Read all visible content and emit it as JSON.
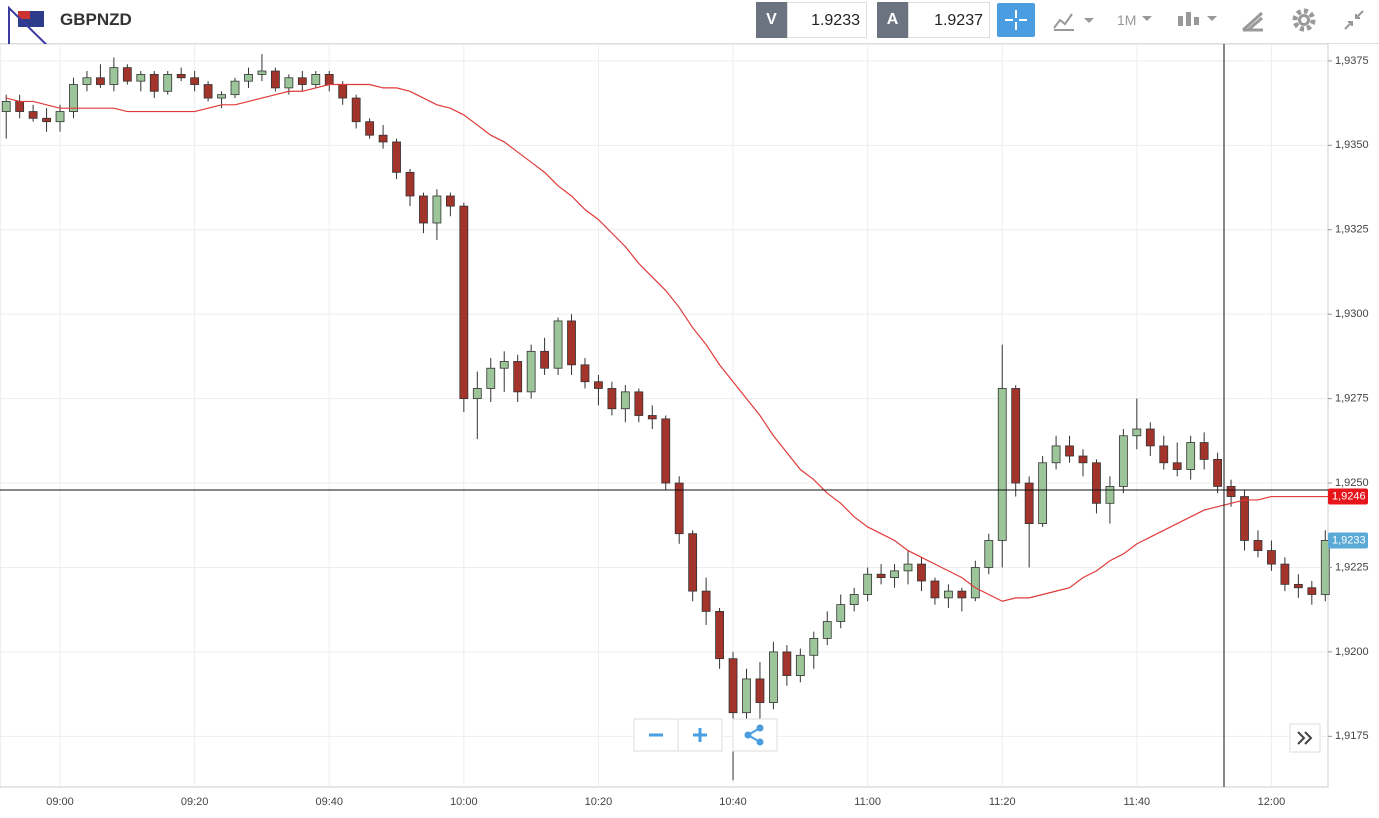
{
  "header": {
    "symbol": "GBPNZD",
    "bid_label": "V",
    "bid": "1.9233",
    "ask_label": "A",
    "ask": "1.9237",
    "timeframe": "1M"
  },
  "chart_data": {
    "type": "candlestick",
    "categories": [
      null,
      null,
      null,
      null,
      "09:00",
      null,
      null,
      null,
      null,
      null,
      null,
      null,
      null,
      null,
      "09:20",
      null,
      null,
      null,
      null,
      null,
      null,
      null,
      null,
      null,
      "09:40",
      null,
      null,
      null,
      null,
      null,
      null,
      null,
      null,
      null,
      "10:00",
      null,
      null,
      null,
      null,
      null,
      null,
      null,
      null,
      null,
      "10:20",
      null,
      null,
      null,
      null,
      null,
      null,
      null,
      null,
      null,
      "10:40",
      null,
      null,
      null,
      null,
      null,
      null,
      null,
      null,
      null,
      "11:00",
      null,
      null,
      null,
      null,
      null,
      null,
      null,
      null,
      null,
      "11:20",
      null,
      null,
      null,
      null,
      null,
      null,
      null,
      null,
      null,
      "11:40",
      null,
      null,
      null,
      null,
      null,
      null,
      null,
      null,
      null,
      "12:00",
      null,
      null,
      null,
      null
    ],
    "open": [
      1.936,
      1.9363,
      1.936,
      1.9358,
      1.9357,
      1.936,
      1.9368,
      1.937,
      1.9368,
      1.9373,
      1.9369,
      1.9371,
      1.9366,
      1.9371,
      1.937,
      1.9368,
      1.9364,
      1.9365,
      1.9369,
      1.9371,
      1.9372,
      1.9367,
      1.937,
      1.9368,
      1.9371,
      1.9368,
      1.9364,
      1.9357,
      1.9353,
      1.9351,
      1.9342,
      1.9335,
      1.9327,
      1.9335,
      1.9332,
      1.9275,
      1.9278,
      1.9284,
      1.9286,
      1.9277,
      1.9289,
      1.9284,
      1.9298,
      1.9285,
      1.928,
      1.9278,
      1.9272,
      1.9277,
      1.927,
      1.9269,
      1.925,
      1.9235,
      1.9218,
      1.9212,
      1.9198,
      1.9182,
      1.9192,
      1.9185,
      1.92,
      1.9193,
      1.9199,
      1.9204,
      1.9209,
      1.9214,
      1.9217,
      1.9223,
      1.9222,
      1.9224,
      1.9226,
      1.9221,
      1.9216,
      1.9218,
      1.9216,
      1.9225,
      1.9233,
      1.9278,
      1.925,
      1.9238,
      1.9256,
      1.9261,
      1.9258,
      1.9256,
      1.9244,
      1.9249,
      1.9264,
      1.9266,
      1.9261,
      1.9256,
      1.9254,
      1.9262,
      1.9257,
      1.9249,
      1.9246,
      1.9233,
      1.923,
      1.9226,
      1.922,
      1.9219,
      1.9217
    ],
    "high": [
      1.9365,
      1.9365,
      1.9362,
      1.9361,
      1.9362,
      1.937,
      1.9372,
      1.9374,
      1.9376,
      1.9374,
      1.9372,
      1.9372,
      1.9372,
      1.9373,
      1.9372,
      1.9369,
      1.9366,
      1.937,
      1.9373,
      1.9377,
      1.9373,
      1.9371,
      1.9372,
      1.9372,
      1.9372,
      1.9369,
      1.9365,
      1.9358,
      1.9356,
      1.9352,
      1.9343,
      1.9336,
      1.9337,
      1.9336,
      1.9333,
      1.9283,
      1.9287,
      1.9289,
      1.9288,
      1.9291,
      1.9293,
      1.9299,
      1.93,
      1.9287,
      1.9282,
      1.928,
      1.9279,
      1.9278,
      1.9273,
      1.927,
      1.9252,
      1.9236,
      1.9222,
      1.9213,
      1.92,
      1.9195,
      1.9197,
      1.9203,
      1.9202,
      1.9201,
      1.9206,
      1.9212,
      1.9217,
      1.9219,
      1.9225,
      1.9226,
      1.9226,
      1.923,
      1.9228,
      1.9222,
      1.922,
      1.9219,
      1.9227,
      1.9235,
      1.9291,
      1.9279,
      1.9252,
      1.9258,
      1.9264,
      1.9264,
      1.926,
      1.9257,
      1.9252,
      1.9266,
      1.9275,
      1.9268,
      1.9264,
      1.9262,
      1.9264,
      1.9265,
      1.9259,
      1.9251,
      1.9248,
      1.9236,
      1.9233,
      1.9228,
      1.9223,
      1.9221,
      1.9236
    ],
    "low": [
      1.9352,
      1.9358,
      1.9357,
      1.9354,
      1.9354,
      1.9358,
      1.9366,
      1.9367,
      1.9366,
      1.9368,
      1.9366,
      1.9364,
      1.9365,
      1.9369,
      1.9366,
      1.9363,
      1.9361,
      1.9364,
      1.9367,
      1.9369,
      1.9366,
      1.9365,
      1.9366,
      1.9367,
      1.9366,
      1.9362,
      1.9355,
      1.9352,
      1.9349,
      1.934,
      1.9332,
      1.9324,
      1.9322,
      1.9329,
      1.9271,
      1.9263,
      1.9274,
      1.9277,
      1.9274,
      1.9275,
      1.9282,
      1.9282,
      1.9282,
      1.9278,
      1.9273,
      1.927,
      1.9268,
      1.9268,
      1.9266,
      1.9248,
      1.9232,
      1.9215,
      1.9208,
      1.9195,
      1.9162,
      1.918,
      1.918,
      1.9183,
      1.919,
      1.9191,
      1.9195,
      1.9202,
      1.9207,
      1.9212,
      1.9215,
      1.922,
      1.9219,
      1.922,
      1.9218,
      1.9214,
      1.9213,
      1.9212,
      1.9215,
      1.9223,
      1.9225,
      1.9246,
      1.9225,
      1.9237,
      1.9254,
      1.9256,
      1.9252,
      1.9241,
      1.9238,
      1.9247,
      1.926,
      1.9258,
      1.9254,
      1.9252,
      1.9251,
      1.9254,
      1.9247,
      1.9243,
      1.923,
      1.9228,
      1.9224,
      1.9218,
      1.9216,
      1.9214,
      1.9215
    ],
    "close": [
      1.9363,
      1.936,
      1.9358,
      1.9357,
      1.936,
      1.9368,
      1.937,
      1.9368,
      1.9373,
      1.9369,
      1.9371,
      1.9366,
      1.9371,
      1.937,
      1.9368,
      1.9364,
      1.9365,
      1.9369,
      1.9371,
      1.9372,
      1.9367,
      1.937,
      1.9368,
      1.9371,
      1.9368,
      1.9364,
      1.9357,
      1.9353,
      1.9351,
      1.9342,
      1.9335,
      1.9327,
      1.9335,
      1.9332,
      1.9275,
      1.9278,
      1.9284,
      1.9286,
      1.9277,
      1.9289,
      1.9284,
      1.9298,
      1.9285,
      1.928,
      1.9278,
      1.9272,
      1.9277,
      1.927,
      1.9269,
      1.925,
      1.9235,
      1.9218,
      1.9212,
      1.9198,
      1.9182,
      1.9192,
      1.9185,
      1.92,
      1.9193,
      1.9199,
      1.9204,
      1.9209,
      1.9214,
      1.9217,
      1.9223,
      1.9222,
      1.9224,
      1.9226,
      1.9221,
      1.9216,
      1.9218,
      1.9216,
      1.9225,
      1.9233,
      1.9278,
      1.925,
      1.9238,
      1.9256,
      1.9261,
      1.9258,
      1.9256,
      1.9244,
      1.9249,
      1.9264,
      1.9266,
      1.9261,
      1.9256,
      1.9254,
      1.9262,
      1.9257,
      1.9249,
      1.9246,
      1.9233,
      1.923,
      1.9226,
      1.922,
      1.9219,
      1.9217,
      1.9233
    ],
    "up_color": "#9cc69a",
    "down_color": "#a3342c",
    "ma": {
      "type": "line",
      "color": "#e03a3a",
      "values": [
        1.9364,
        1.9363,
        1.9363,
        1.9362,
        1.9361,
        1.9361,
        1.9361,
        1.9361,
        1.9361,
        1.936,
        1.936,
        1.936,
        1.936,
        1.936,
        1.936,
        1.9361,
        1.9362,
        1.9362,
        1.9363,
        1.9364,
        1.9365,
        1.9366,
        1.9366,
        1.9367,
        1.9368,
        1.9368,
        1.9368,
        1.9368,
        1.9367,
        1.9367,
        1.9366,
        1.9364,
        1.9362,
        1.9361,
        1.9359,
        1.9356,
        1.9353,
        1.9351,
        1.9348,
        1.9345,
        1.9342,
        1.9338,
        1.9335,
        1.9331,
        1.9328,
        1.9324,
        1.932,
        1.9315,
        1.9311,
        1.9307,
        1.9302,
        1.9296,
        1.9291,
        1.9285,
        1.928,
        1.9275,
        1.927,
        1.9264,
        1.9259,
        1.9254,
        1.9251,
        1.9247,
        1.9244,
        1.924,
        1.9237,
        1.9235,
        1.9233,
        1.923,
        1.9228,
        1.9226,
        1.9224,
        1.9222,
        1.9219,
        1.9217,
        1.9215,
        1.9216,
        1.9216,
        1.9217,
        1.9218,
        1.9219,
        1.9222,
        1.9224,
        1.9227,
        1.9229,
        1.9232,
        1.9234,
        1.9236,
        1.9238,
        1.924,
        1.9242,
        1.9243,
        1.9244,
        1.9245,
        1.9245,
        1.9246,
        1.9246,
        1.9246,
        1.9246,
        1.9246
      ]
    },
    "ylim": [
      1.916,
      1.938
    ],
    "yticks": [
      {
        "value": 1.9175,
        "label": "1,9175"
      },
      {
        "value": 1.92,
        "label": "1,9200"
      },
      {
        "value": 1.9225,
        "label": "1,9225"
      },
      {
        "value": 1.925,
        "label": "1,9250"
      },
      {
        "value": 1.9275,
        "label": "1,9275"
      },
      {
        "value": 1.93,
        "label": "1,9300"
      },
      {
        "value": 1.9325,
        "label": "1,9325"
      },
      {
        "value": 1.935,
        "label": "1,9350"
      },
      {
        "value": 1.9375,
        "label": "1,9375"
      }
    ],
    "grid": true,
    "price_tags": [
      {
        "value": 1.9246,
        "label": "1,9246",
        "color": "#e8141b"
      },
      {
        "value": 1.9233,
        "label": "1,9233",
        "color": "#5aa9d6"
      }
    ]
  }
}
